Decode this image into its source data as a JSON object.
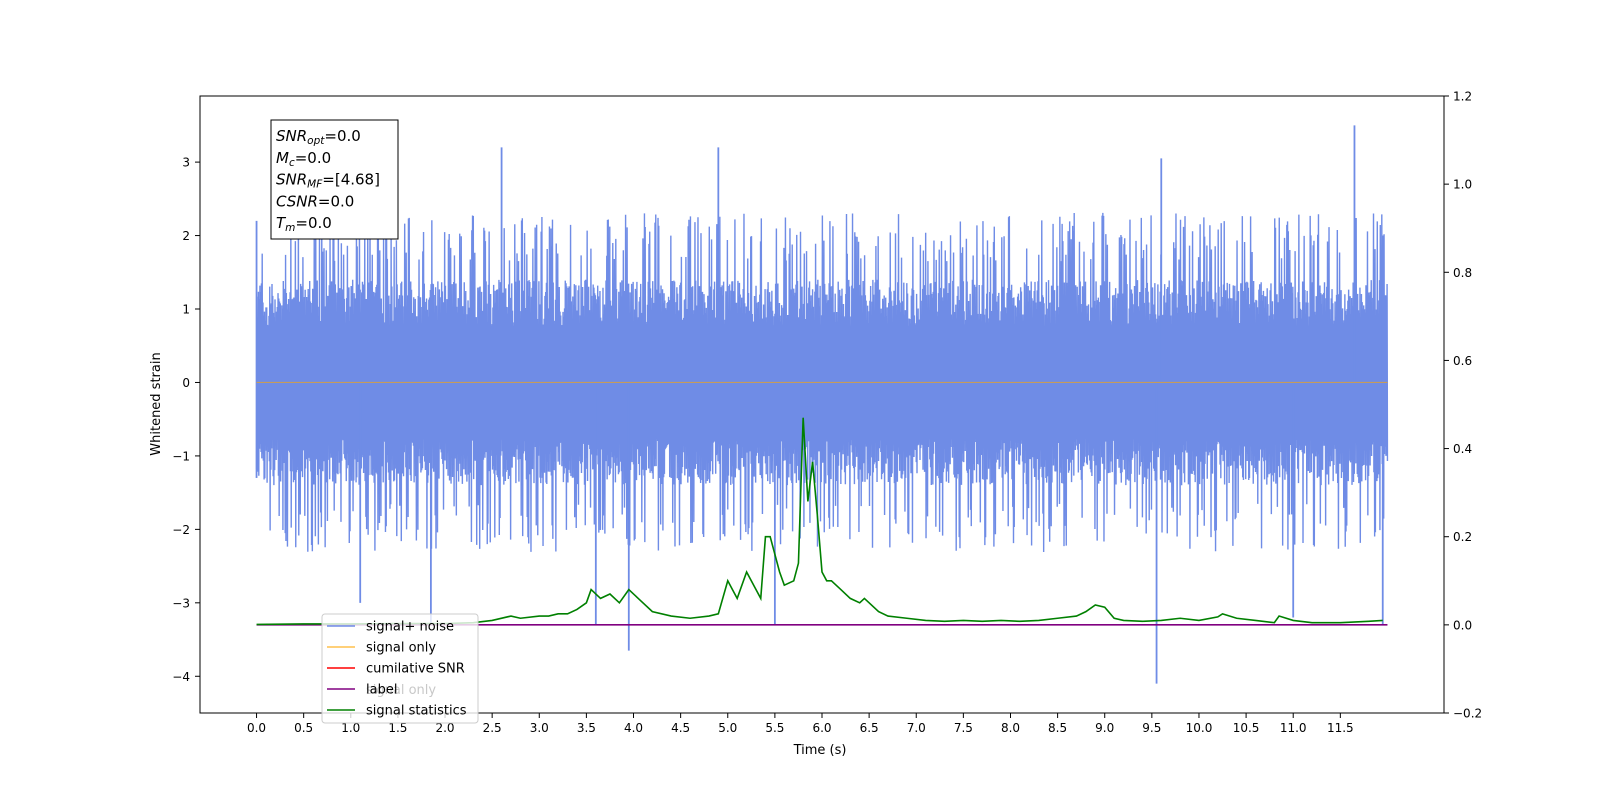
{
  "chart_data": {
    "type": "line",
    "xlabel": "Time (s)",
    "ylabel": "Whitened strain",
    "xlim": [
      -0.6,
      12.6
    ],
    "ylim": [
      -4.5,
      3.9
    ],
    "y2lim": [
      -0.2,
      1.2
    ],
    "x_ticks": [
      0.0,
      0.5,
      1.0,
      1.5,
      2.0,
      2.5,
      3.0,
      3.5,
      4.0,
      4.5,
      5.0,
      5.5,
      6.0,
      6.5,
      7.0,
      7.5,
      8.0,
      8.5,
      9.0,
      9.5,
      10.0,
      10.5,
      11.0,
      11.5
    ],
    "x_tick_labels": [
      "0.0",
      "0.5",
      "1.0",
      "1.5",
      "2.0",
      "2.5",
      "3.0",
      "3.5",
      "4.0",
      "4.5",
      "5.0",
      "5.5",
      "6.0",
      "6.5",
      "7.0",
      "7.5",
      "8.0",
      "8.5",
      "9.0",
      "9.5",
      "10.0",
      "10.5",
      "11.0",
      "11.5"
    ],
    "y_ticks": [
      -4,
      -3,
      -2,
      -1,
      0,
      1,
      2,
      3
    ],
    "y_tick_labels": [
      "−4",
      "−3",
      "−2",
      "−1",
      "0",
      "1",
      "2",
      "3"
    ],
    "y2_ticks": [
      -0.2,
      0.0,
      0.2,
      0.4,
      0.6,
      0.8,
      1.0,
      1.2
    ],
    "y2_tick_labels": [
      "−0.2",
      "0.0",
      "0.2",
      "0.4",
      "0.6",
      "0.8",
      "1.0",
      "1.2"
    ],
    "grid": false,
    "legend_position": "bottom-left",
    "noise": {
      "x_range": [
        0.0,
        12.0
      ],
      "band_upper": 1.4,
      "band_lower": -1.4,
      "typical_peak_upper": 2.2,
      "typical_peak_lower": -2.2,
      "extremes": [
        {
          "x": 0.0,
          "y": 2.2
        },
        {
          "x": 0.0,
          "y": -1.3
        },
        {
          "x": 1.1,
          "y": -3.0
        },
        {
          "x": 1.85,
          "y": -3.3
        },
        {
          "x": 2.6,
          "y": 3.2
        },
        {
          "x": 3.6,
          "y": -3.3
        },
        {
          "x": 3.95,
          "y": -3.65
        },
        {
          "x": 4.9,
          "y": 3.2
        },
        {
          "x": 5.5,
          "y": -3.3
        },
        {
          "x": 9.55,
          "y": -4.1
        },
        {
          "x": 9.6,
          "y": 3.05
        },
        {
          "x": 11.0,
          "y": -3.2
        },
        {
          "x": 11.65,
          "y": 3.5
        },
        {
          "x": 11.95,
          "y": -3.3
        },
        {
          "x": 11.95,
          "y": 2.0
        }
      ]
    },
    "series": [
      {
        "name": "signal+ noise",
        "color": "#6f8ce6",
        "axis": "left",
        "style": "noise"
      },
      {
        "name": "signal only",
        "color": "#ffa500",
        "axis": "left",
        "x": [
          0.0,
          12.0
        ],
        "y": [
          0.0,
          0.0
        ]
      },
      {
        "name": "cumilative SNR",
        "color": "#ff0000",
        "axis": "right",
        "x": [],
        "y": []
      },
      {
        "name": "label",
        "color": "#800080",
        "axis": "right",
        "x": [
          0.0,
          12.0
        ],
        "y": [
          0.0,
          0.0
        ]
      },
      {
        "name": "signal statistics",
        "color": "#008000",
        "axis": "right",
        "x": [
          0.0,
          0.5,
          1.0,
          1.5,
          2.0,
          2.3,
          2.5,
          2.7,
          2.8,
          3.0,
          3.1,
          3.2,
          3.3,
          3.4,
          3.5,
          3.55,
          3.65,
          3.75,
          3.85,
          3.95,
          4.05,
          4.2,
          4.4,
          4.6,
          4.8,
          4.9,
          5.0,
          5.05,
          5.1,
          5.2,
          5.3,
          5.35,
          5.4,
          5.45,
          5.55,
          5.6,
          5.7,
          5.75,
          5.8,
          5.85,
          5.9,
          5.95,
          6.0,
          6.05,
          6.1,
          6.2,
          6.3,
          6.4,
          6.45,
          6.5,
          6.6,
          6.7,
          6.9,
          7.1,
          7.3,
          7.5,
          7.7,
          7.9,
          8.1,
          8.3,
          8.5,
          8.7,
          8.8,
          8.9,
          9.0,
          9.1,
          9.2,
          9.4,
          9.6,
          9.8,
          10.0,
          10.2,
          10.25,
          10.4,
          10.6,
          10.8,
          10.85,
          11.0,
          11.2,
          11.5,
          11.8,
          11.95
        ],
        "y": [
          0.001,
          0.002,
          0.002,
          0.003,
          0.003,
          0.005,
          0.01,
          0.02,
          0.015,
          0.02,
          0.02,
          0.025,
          0.025,
          0.035,
          0.05,
          0.08,
          0.06,
          0.07,
          0.05,
          0.08,
          0.06,
          0.03,
          0.02,
          0.015,
          0.02,
          0.025,
          0.1,
          0.08,
          0.06,
          0.12,
          0.08,
          0.06,
          0.2,
          0.2,
          0.12,
          0.09,
          0.1,
          0.14,
          0.47,
          0.28,
          0.37,
          0.25,
          0.12,
          0.1,
          0.1,
          0.08,
          0.06,
          0.05,
          0.06,
          0.05,
          0.03,
          0.02,
          0.015,
          0.01,
          0.008,
          0.01,
          0.008,
          0.01,
          0.008,
          0.01,
          0.015,
          0.02,
          0.03,
          0.045,
          0.04,
          0.015,
          0.01,
          0.008,
          0.01,
          0.015,
          0.01,
          0.018,
          0.025,
          0.015,
          0.01,
          0.005,
          0.02,
          0.01,
          0.005,
          0.005,
          0.008,
          0.01
        ]
      }
    ],
    "annotation": {
      "lines": [
        {
          "main": "SNR",
          "sub": "opt",
          "value": "=0.0"
        },
        {
          "main": "M",
          "sub": "c",
          "value": "=0.0"
        },
        {
          "main": "SNR",
          "sub": "MF",
          "value": "=[4.68]"
        },
        {
          "main": "CSNR",
          "sub": "",
          "value": "=0.0"
        },
        {
          "main": "T",
          "sub": "m",
          "value": "=0.0"
        }
      ]
    },
    "legend_entries": [
      {
        "label": "signal+ noise",
        "color": "#6f8ce6"
      },
      {
        "label": "signal only",
        "color": "#ffc04d"
      },
      {
        "label": "cumilative SNR",
        "color": "#ff0000"
      },
      {
        "label": "label",
        "color": "#800080"
      },
      {
        "label": "signal statistics",
        "color": "#008000"
      }
    ],
    "hidden_legend_text": "signal only"
  }
}
